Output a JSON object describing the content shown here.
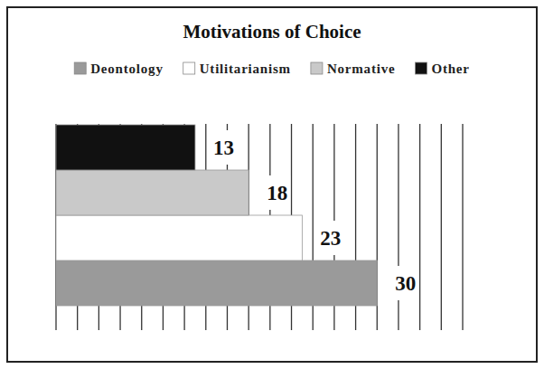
{
  "chart_data": {
    "type": "bar",
    "title": "Motivations of Choice",
    "orientation": "horizontal",
    "categories": [
      "Deontology",
      "Utilitarianism",
      "Normative",
      "Other"
    ],
    "values": [
      30,
      23,
      18,
      13
    ],
    "colors": [
      "#9a9a9a",
      "#ffffff",
      "#c9c9c9",
      "#111111"
    ],
    "xlim": [
      0,
      38
    ],
    "xticks": [
      0,
      2,
      4,
      6,
      8,
      10,
      12,
      14,
      16,
      18,
      20,
      22,
      24,
      26,
      28,
      30,
      32,
      34,
      36,
      38
    ],
    "grid": true,
    "legend": "top",
    "data_labels": true,
    "tick_labels": false
  }
}
